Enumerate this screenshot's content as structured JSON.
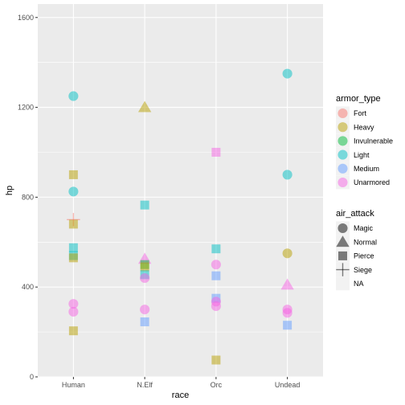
{
  "chart_data": {
    "type": "scatter",
    "title": "",
    "xlabel": "race",
    "ylabel": "hp",
    "x_categories": [
      "Human",
      "N.Elf",
      "Orc",
      "Undead"
    ],
    "ylim": [
      0,
      1660
    ],
    "y_ticks": [
      0,
      400,
      800,
      1200,
      1600
    ],
    "grid": true,
    "legend_placement": "right",
    "legend_color": {
      "title": "armor_type",
      "entries": [
        {
          "label": "Fort",
          "color": "#F8766D"
        },
        {
          "label": "Heavy",
          "color": "#B79F00"
        },
        {
          "label": "Invulnerable",
          "color": "#00BA38"
        },
        {
          "label": "Light",
          "color": "#00BFC4"
        },
        {
          "label": "Medium",
          "color": "#619CFF"
        },
        {
          "label": "Unarmored",
          "color": "#F564E3"
        }
      ]
    },
    "legend_shape": {
      "title": "air_attack",
      "entries": [
        {
          "label": "Magic",
          "shape": "circle"
        },
        {
          "label": "Normal",
          "shape": "triangle"
        },
        {
          "label": "Pierce",
          "shape": "square"
        },
        {
          "label": "Siege",
          "shape": "cross"
        },
        {
          "label": "NA",
          "shape": "none"
        }
      ]
    },
    "points": [
      {
        "x": "Human",
        "y": 1250,
        "armor": "Light",
        "shape": "circle"
      },
      {
        "x": "Human",
        "y": 900,
        "armor": "Heavy",
        "shape": "square"
      },
      {
        "x": "Human",
        "y": 825,
        "armor": "Light",
        "shape": "circle"
      },
      {
        "x": "Human",
        "y": 700,
        "armor": "Fort",
        "shape": "cross"
      },
      {
        "x": "Human",
        "y": 680,
        "armor": "Heavy",
        "shape": "square"
      },
      {
        "x": "Human",
        "y": 575,
        "armor": "Light",
        "shape": "square"
      },
      {
        "x": "Human",
        "y": 540,
        "armor": "Light",
        "shape": "square"
      },
      {
        "x": "Human",
        "y": 530,
        "armor": "Heavy",
        "shape": "square"
      },
      {
        "x": "Human",
        "y": 325,
        "armor": "Unarmored",
        "shape": "circle"
      },
      {
        "x": "Human",
        "y": 290,
        "armor": "Unarmored",
        "shape": "circle"
      },
      {
        "x": "Human",
        "y": 205,
        "armor": "Heavy",
        "shape": "square"
      },
      {
        "x": "N.Elf",
        "y": 1200,
        "armor": "Heavy",
        "shape": "triangle"
      },
      {
        "x": "N.Elf",
        "y": 765,
        "armor": "Light",
        "shape": "square"
      },
      {
        "x": "N.Elf",
        "y": 525,
        "armor": "Unarmored",
        "shape": "triangle"
      },
      {
        "x": "N.Elf",
        "y": 500,
        "armor": "Invulnerable",
        "shape": "square"
      },
      {
        "x": "N.Elf",
        "y": 490,
        "armor": "Heavy",
        "shape": "square"
      },
      {
        "x": "N.Elf",
        "y": 455,
        "armor": "Light",
        "shape": "square"
      },
      {
        "x": "N.Elf",
        "y": 440,
        "armor": "Unarmored",
        "shape": "circle"
      },
      {
        "x": "N.Elf",
        "y": 300,
        "armor": "Unarmored",
        "shape": "circle"
      },
      {
        "x": "N.Elf",
        "y": 245,
        "armor": "Medium",
        "shape": "square"
      },
      {
        "x": "Orc",
        "y": 1000,
        "armor": "Unarmored",
        "shape": "square"
      },
      {
        "x": "Orc",
        "y": 570,
        "armor": "Light",
        "shape": "square"
      },
      {
        "x": "Orc",
        "y": 500,
        "armor": "Unarmored",
        "shape": "circle"
      },
      {
        "x": "Orc",
        "y": 450,
        "armor": "Medium",
        "shape": "square"
      },
      {
        "x": "Orc",
        "y": 350,
        "armor": "Medium",
        "shape": "square"
      },
      {
        "x": "Orc",
        "y": 335,
        "armor": "Unarmored",
        "shape": "circle"
      },
      {
        "x": "Orc",
        "y": 315,
        "armor": "Unarmored",
        "shape": "circle"
      },
      {
        "x": "Orc",
        "y": 75,
        "armor": "Heavy",
        "shape": "square"
      },
      {
        "x": "Undead",
        "y": 1350,
        "armor": "Light",
        "shape": "circle"
      },
      {
        "x": "Undead",
        "y": 900,
        "armor": "Light",
        "shape": "circle"
      },
      {
        "x": "Undead",
        "y": 550,
        "armor": "Heavy",
        "shape": "circle"
      },
      {
        "x": "Undead",
        "y": 410,
        "armor": "Unarmored",
        "shape": "triangle"
      },
      {
        "x": "Undead",
        "y": 300,
        "armor": "Unarmored",
        "shape": "circle"
      },
      {
        "x": "Undead",
        "y": 285,
        "armor": "Unarmored",
        "shape": "circle"
      },
      {
        "x": "Undead",
        "y": 230,
        "armor": "Medium",
        "shape": "square"
      }
    ]
  }
}
